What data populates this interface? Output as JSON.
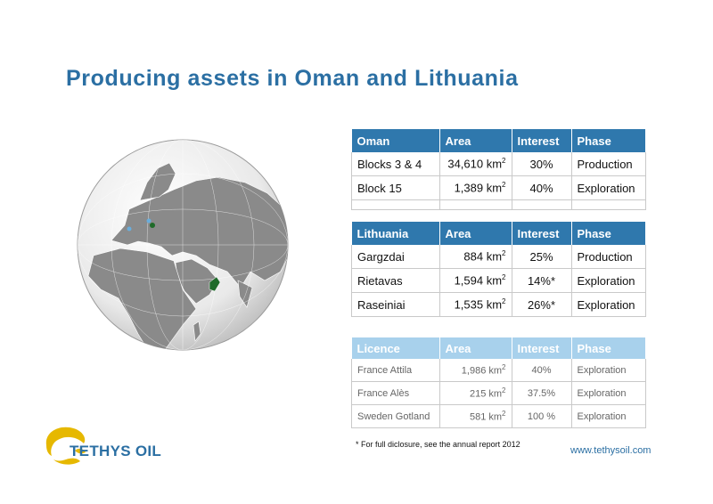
{
  "title": "Producing assets in Oman and Lithuania",
  "oman_table": {
    "headers": [
      "Oman",
      "Area",
      "Interest",
      "Phase"
    ],
    "rows": [
      {
        "name": "Blocks 3 & 4",
        "area": "34,610 km",
        "interest": "30%",
        "phase": "Production"
      },
      {
        "name": "Block 15",
        "area": "1,389 km",
        "interest": "40%",
        "phase": "Exploration"
      }
    ]
  },
  "lithuania_table": {
    "headers": [
      "Lithuania",
      "Area",
      "Interest",
      "Phase"
    ],
    "rows": [
      {
        "name": "Gargzdai",
        "area": "884 km",
        "interest": "25%",
        "phase": "Production"
      },
      {
        "name": "Rietavas",
        "area": "1,594 km",
        "interest": "14%*",
        "phase": "Exploration"
      },
      {
        "name": "Raseiniai",
        "area": "1,535 km",
        "interest": "26%*",
        "phase": "Exploration"
      }
    ]
  },
  "licence_table": {
    "headers": [
      "Licence",
      "Area",
      "Interest",
      "Phase"
    ],
    "rows": [
      {
        "name": "France Attila",
        "area": "1,986 km",
        "interest": "40%",
        "phase": "Exploration"
      },
      {
        "name": "France Alès",
        "area": "215 km",
        "interest": "37.5%",
        "phase": "Exploration"
      },
      {
        "name": "Sweden Gotland",
        "area": "581 km",
        "interest": "100 %",
        "phase": "Exploration"
      }
    ]
  },
  "area_unit_sup": "2",
  "footnote": "* For full diclosure, see the annual report 2012",
  "website": "www.tethysoil.com",
  "logo": {
    "text": "TETHYS OIL",
    "icon": "globe-logo-icon"
  },
  "colors": {
    "title": "#2b6fa3",
    "header": "#2f78ad",
    "licence_header": "#a8d1ec",
    "asset_marker": "#1f6b2a",
    "licence_marker": "#6aaedc"
  }
}
